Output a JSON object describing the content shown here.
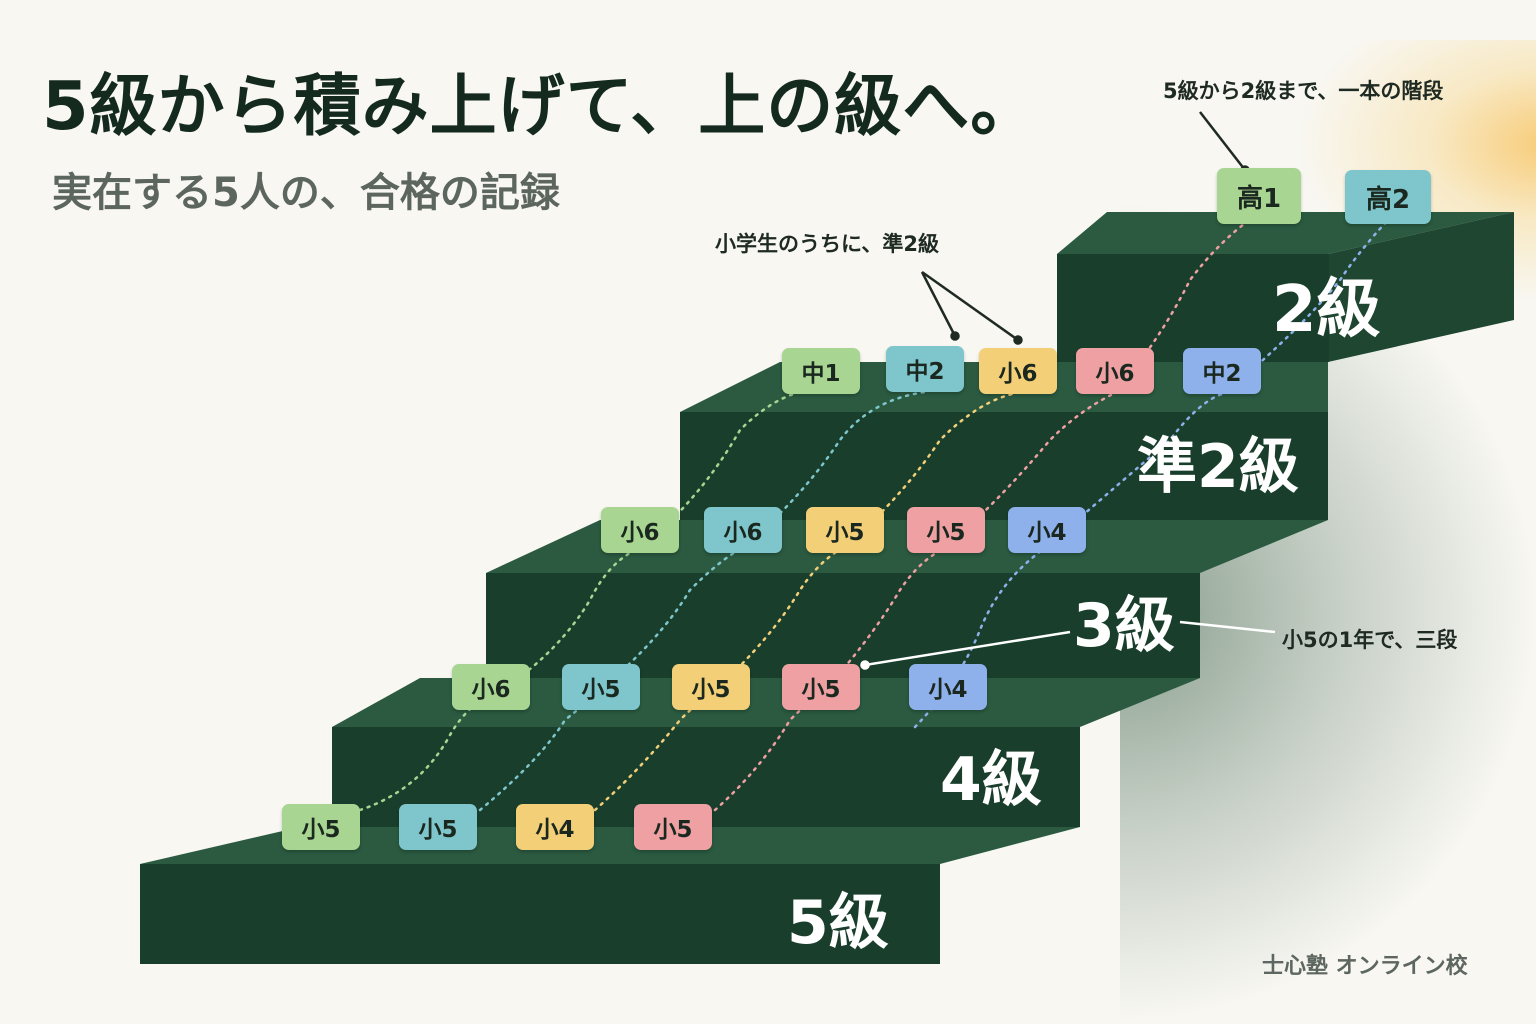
{
  "title": "5級から積み上げて、上の級へ。",
  "subtitle": "実在する5人の、合格の記録",
  "levels": {
    "l5": "5級",
    "l4": "4級",
    "l3": "3級",
    "lp2": "準2級",
    "l2": "2級"
  },
  "annotations": {
    "top_note": "5級から2級まで、一本の階段",
    "mid_note": "小学生のうちに、準2級",
    "right_note": "小5の1年で、三段"
  },
  "footer": "士心塾 オンライン校",
  "colors": {
    "green": "#a8d591",
    "teal": "#7ec6cc",
    "yellow": "#f3cf78",
    "pink": "#eea0a3",
    "blue": "#8fb1eb",
    "stair_face": "#193f2c",
    "stair_top": "#2b5a40"
  },
  "grade_labels": {
    "s5_green": "小5",
    "s5_teal": "小5",
    "s5_yellow": "小4",
    "s5_pink": "小5",
    "s4_green": "小6",
    "s4_teal": "小5",
    "s4_yellow": "小5",
    "s4_pink": "小5",
    "s4_blue": "小4",
    "s3_green": "小6",
    "s3_teal": "小6",
    "s3_yellow": "小5",
    "s3_pink": "小5",
    "s3_blue": "小4",
    "sp2_green": "中1",
    "sp2_teal": "中2",
    "sp2_yellow": "小6",
    "sp2_pink": "小6",
    "sp2_blue": "中2",
    "s2_green": "高1",
    "s2_teal": "高2"
  }
}
